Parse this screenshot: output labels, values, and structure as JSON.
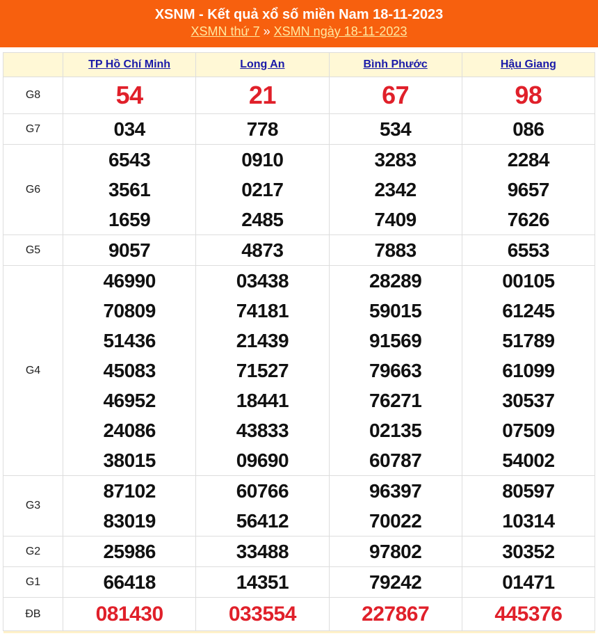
{
  "header": {
    "title": "XSNM - Kết quả xổ số miền Nam 18-11-2023",
    "link1": "XSMN thứ 7",
    "separator": "»",
    "link2": "XSMN ngày 18-11-2023"
  },
  "provinces": [
    "TP Hồ Chí Minh",
    "Long An",
    "Bình Phước",
    "Hậu Giang"
  ],
  "colors": {
    "header_bg": "#f7600e",
    "highlight": "#e0202a",
    "table_header_bg": "#fff8d6",
    "link": "#1a1aa8"
  },
  "prizes": [
    {
      "label": "G8",
      "values": [
        [
          "54"
        ],
        [
          "21"
        ],
        [
          "67"
        ],
        [
          "98"
        ]
      ]
    },
    {
      "label": "G7",
      "values": [
        [
          "034"
        ],
        [
          "778"
        ],
        [
          "534"
        ],
        [
          "086"
        ]
      ]
    },
    {
      "label": "G6",
      "values": [
        [
          "6543",
          "3561",
          "1659"
        ],
        [
          "0910",
          "0217",
          "2485"
        ],
        [
          "3283",
          "2342",
          "7409"
        ],
        [
          "2284",
          "9657",
          "7626"
        ]
      ]
    },
    {
      "label": "G5",
      "values": [
        [
          "9057"
        ],
        [
          "4873"
        ],
        [
          "7883"
        ],
        [
          "6553"
        ]
      ]
    },
    {
      "label": "G4",
      "values": [
        [
          "46990",
          "70809",
          "51436",
          "45083",
          "46952",
          "24086",
          "38015"
        ],
        [
          "03438",
          "74181",
          "21439",
          "71527",
          "18441",
          "43833",
          "09690"
        ],
        [
          "28289",
          "59015",
          "91569",
          "79663",
          "76271",
          "02135",
          "60787"
        ],
        [
          "00105",
          "61245",
          "51789",
          "61099",
          "30537",
          "07509",
          "54002"
        ]
      ]
    },
    {
      "label": "G3",
      "values": [
        [
          "87102",
          "83019"
        ],
        [
          "60766",
          "56412"
        ],
        [
          "96397",
          "70022"
        ],
        [
          "80597",
          "10314"
        ]
      ]
    },
    {
      "label": "G2",
      "values": [
        [
          "25986"
        ],
        [
          "33488"
        ],
        [
          "97802"
        ],
        [
          "30352"
        ]
      ]
    },
    {
      "label": "G1",
      "values": [
        [
          "66418"
        ],
        [
          "14351"
        ],
        [
          "79242"
        ],
        [
          "01471"
        ]
      ]
    },
    {
      "label": "ĐB",
      "values": [
        [
          "081430"
        ],
        [
          "033554"
        ],
        [
          "227867"
        ],
        [
          "445376"
        ]
      ]
    }
  ]
}
